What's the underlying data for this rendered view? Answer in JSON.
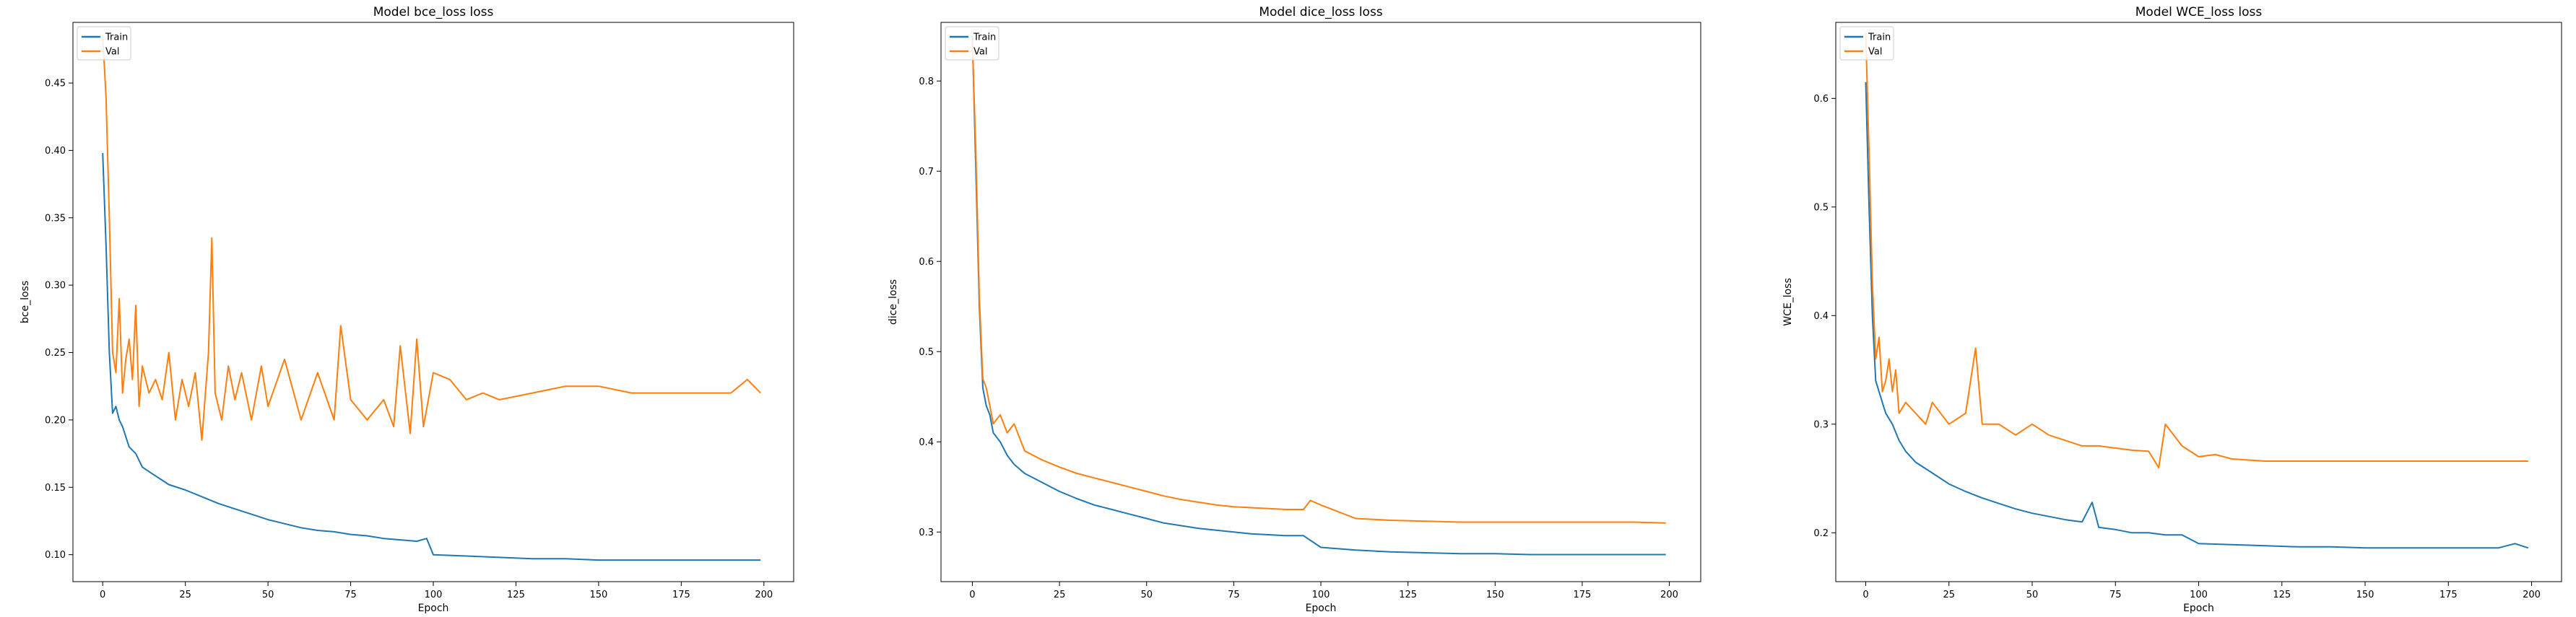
{
  "chart_data": [
    {
      "type": "line",
      "title": "Model bce_loss loss",
      "xlabel": "Epoch",
      "ylabel": "bce_loss",
      "xlim": [
        -9,
        209
      ],
      "ylim": [
        0.08,
        0.495
      ],
      "xticks": [
        0,
        25,
        50,
        75,
        100,
        125,
        150,
        175,
        200
      ],
      "yticks": [
        0.1,
        0.15,
        0.2,
        0.25,
        0.3,
        0.35,
        0.4,
        0.45
      ],
      "ytick_labels": [
        "0.10",
        "0.15",
        "0.20",
        "0.25",
        "0.30",
        "0.35",
        "0.40",
        "0.45"
      ],
      "legend": "top-left",
      "grid": false,
      "series": [
        {
          "name": "Train",
          "color": "#1f77b4",
          "x": [
            0,
            1,
            2,
            3,
            4,
            5,
            6,
            8,
            10,
            12,
            15,
            20,
            25,
            30,
            35,
            40,
            45,
            50,
            55,
            60,
            65,
            70,
            75,
            80,
            85,
            90,
            95,
            98,
            100,
            110,
            120,
            130,
            140,
            150,
            160,
            170,
            180,
            190,
            199
          ],
          "y": [
            0.398,
            0.33,
            0.25,
            0.205,
            0.21,
            0.2,
            0.195,
            0.18,
            0.175,
            0.165,
            0.16,
            0.152,
            0.148,
            0.143,
            0.138,
            0.134,
            0.13,
            0.126,
            0.123,
            0.12,
            0.118,
            0.117,
            0.115,
            0.114,
            0.112,
            0.111,
            0.11,
            0.112,
            0.1,
            0.099,
            0.098,
            0.097,
            0.097,
            0.096,
            0.096,
            0.096,
            0.096,
            0.096,
            0.096
          ]
        },
        {
          "name": "Val",
          "color": "#ff7f0e",
          "x": [
            0,
            1,
            2,
            3,
            4,
            5,
            6,
            7,
            8,
            9,
            10,
            11,
            12,
            14,
            16,
            18,
            20,
            22,
            24,
            26,
            28,
            30,
            32,
            33,
            34,
            36,
            38,
            40,
            42,
            45,
            48,
            50,
            55,
            60,
            65,
            70,
            72,
            75,
            80,
            85,
            88,
            90,
            93,
            95,
            97,
            100,
            105,
            110,
            115,
            120,
            130,
            140,
            150,
            160,
            170,
            180,
            190,
            195,
            199
          ],
          "y": [
            0.485,
            0.44,
            0.35,
            0.25,
            0.235,
            0.29,
            0.22,
            0.245,
            0.26,
            0.23,
            0.285,
            0.21,
            0.24,
            0.22,
            0.23,
            0.215,
            0.25,
            0.2,
            0.23,
            0.21,
            0.235,
            0.185,
            0.25,
            0.335,
            0.22,
            0.2,
            0.24,
            0.215,
            0.235,
            0.2,
            0.24,
            0.21,
            0.245,
            0.2,
            0.235,
            0.2,
            0.27,
            0.215,
            0.2,
            0.215,
            0.195,
            0.255,
            0.19,
            0.26,
            0.195,
            0.235,
            0.23,
            0.215,
            0.22,
            0.215,
            0.22,
            0.225,
            0.225,
            0.22,
            0.22,
            0.22,
            0.22,
            0.23,
            0.22
          ]
        }
      ]
    },
    {
      "type": "line",
      "title": "Model dice_loss loss",
      "xlabel": "Epoch",
      "ylabel": "dice_loss",
      "xlim": [
        -9,
        209
      ],
      "ylim": [
        0.245,
        0.865
      ],
      "xticks": [
        0,
        25,
        50,
        75,
        100,
        125,
        150,
        175,
        200
      ],
      "yticks": [
        0.3,
        0.4,
        0.5,
        0.6,
        0.7,
        0.8
      ],
      "ytick_labels": [
        "0.3",
        "0.4",
        "0.5",
        "0.6",
        "0.7",
        "0.8"
      ],
      "legend": "top-left",
      "grid": false,
      "series": [
        {
          "name": "Train",
          "color": "#1f77b4",
          "x": [
            0,
            1,
            2,
            3,
            4,
            5,
            6,
            8,
            10,
            12,
            15,
            20,
            25,
            30,
            35,
            40,
            45,
            50,
            55,
            60,
            65,
            70,
            75,
            80,
            85,
            90,
            95,
            100,
            110,
            120,
            130,
            140,
            150,
            160,
            170,
            180,
            190,
            199
          ],
          "y": [
            0.85,
            0.7,
            0.55,
            0.46,
            0.44,
            0.43,
            0.41,
            0.4,
            0.385,
            0.375,
            0.365,
            0.355,
            0.345,
            0.337,
            0.33,
            0.325,
            0.32,
            0.315,
            0.31,
            0.307,
            0.304,
            0.302,
            0.3,
            0.298,
            0.297,
            0.296,
            0.296,
            0.283,
            0.28,
            0.278,
            0.277,
            0.276,
            0.276,
            0.275,
            0.275,
            0.275,
            0.275,
            0.275
          ]
        },
        {
          "name": "Val",
          "color": "#ff7f0e",
          "x": [
            0,
            1,
            2,
            3,
            4,
            5,
            6,
            8,
            10,
            12,
            15,
            20,
            25,
            30,
            35,
            40,
            45,
            50,
            55,
            60,
            65,
            70,
            75,
            80,
            85,
            90,
            95,
            97,
            100,
            110,
            120,
            130,
            140,
            150,
            160,
            170,
            180,
            190,
            199
          ],
          "y": [
            0.845,
            0.72,
            0.56,
            0.47,
            0.46,
            0.44,
            0.42,
            0.43,
            0.41,
            0.42,
            0.39,
            0.38,
            0.372,
            0.365,
            0.36,
            0.355,
            0.35,
            0.345,
            0.34,
            0.336,
            0.333,
            0.33,
            0.328,
            0.327,
            0.326,
            0.325,
            0.325,
            0.335,
            0.33,
            0.315,
            0.313,
            0.312,
            0.311,
            0.311,
            0.311,
            0.311,
            0.311,
            0.311,
            0.31
          ]
        }
      ]
    },
    {
      "type": "line",
      "title": "Model WCE_loss loss",
      "xlabel": "Epoch",
      "ylabel": "WCE_loss",
      "xlim": [
        -9,
        209
      ],
      "ylim": [
        0.155,
        0.67
      ],
      "xticks": [
        0,
        25,
        50,
        75,
        100,
        125,
        150,
        175,
        200
      ],
      "yticks": [
        0.2,
        0.3,
        0.4,
        0.5,
        0.6
      ],
      "ytick_labels": [
        "0.2",
        "0.3",
        "0.4",
        "0.5",
        "0.6"
      ],
      "legend": "top-left",
      "grid": false,
      "series": [
        {
          "name": "Train",
          "color": "#1f77b4",
          "x": [
            0,
            1,
            2,
            3,
            4,
            5,
            6,
            8,
            10,
            12,
            15,
            20,
            25,
            30,
            35,
            40,
            45,
            50,
            55,
            60,
            65,
            68,
            70,
            75,
            80,
            85,
            90,
            95,
            100,
            110,
            120,
            130,
            140,
            150,
            160,
            170,
            180,
            190,
            195,
            199
          ],
          "y": [
            0.615,
            0.5,
            0.4,
            0.34,
            0.33,
            0.32,
            0.31,
            0.3,
            0.285,
            0.275,
            0.265,
            0.255,
            0.245,
            0.238,
            0.232,
            0.227,
            0.222,
            0.218,
            0.215,
            0.212,
            0.21,
            0.228,
            0.205,
            0.203,
            0.2,
            0.2,
            0.198,
            0.198,
            0.19,
            0.189,
            0.188,
            0.187,
            0.187,
            0.186,
            0.186,
            0.186,
            0.186,
            0.186,
            0.19,
            0.186
          ]
        },
        {
          "name": "Val",
          "color": "#ff7f0e",
          "x": [
            0,
            1,
            2,
            3,
            4,
            5,
            6,
            7,
            8,
            9,
            10,
            12,
            15,
            18,
            20,
            25,
            30,
            33,
            35,
            40,
            45,
            50,
            55,
            60,
            65,
            70,
            75,
            80,
            85,
            88,
            90,
            95,
            100,
            105,
            110,
            120,
            130,
            140,
            150,
            160,
            170,
            180,
            190,
            199
          ],
          "y": [
            0.66,
            0.55,
            0.43,
            0.36,
            0.38,
            0.33,
            0.34,
            0.36,
            0.33,
            0.35,
            0.31,
            0.32,
            0.31,
            0.3,
            0.32,
            0.3,
            0.31,
            0.37,
            0.3,
            0.3,
            0.29,
            0.3,
            0.29,
            0.285,
            0.28,
            0.28,
            0.278,
            0.276,
            0.275,
            0.26,
            0.3,
            0.28,
            0.27,
            0.272,
            0.268,
            0.266,
            0.266,
            0.266,
            0.266,
            0.266,
            0.266,
            0.266,
            0.266,
            0.266
          ]
        }
      ]
    }
  ]
}
